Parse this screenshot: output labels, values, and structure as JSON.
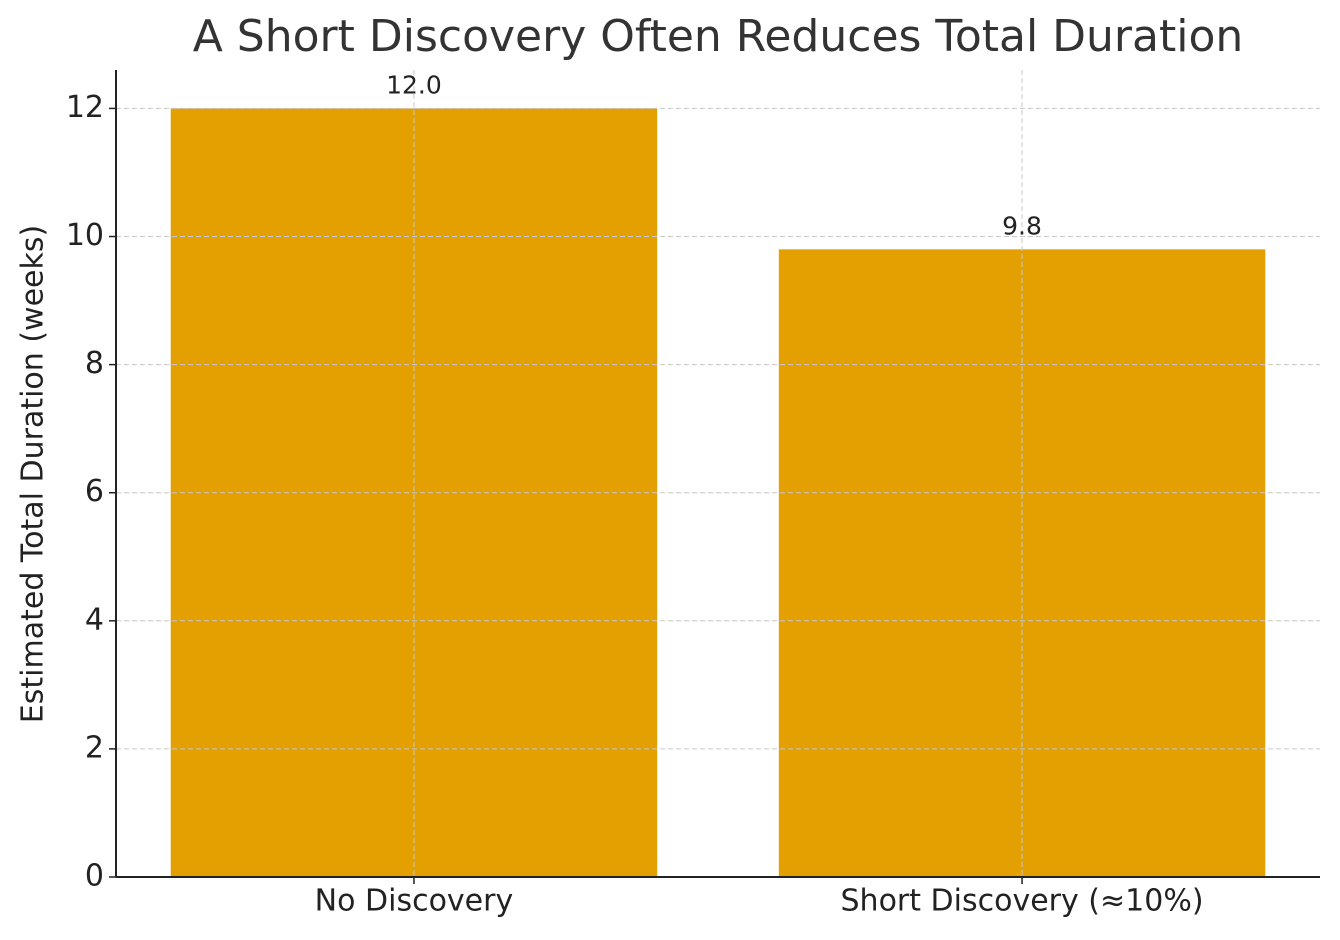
{
  "chart_data": {
    "type": "bar",
    "title": "A Short Discovery Often Reduces Total Duration",
    "y_label": "Estimated Total Duration (weeks)",
    "categories": [
      "No Discovery",
      "Short Discovery (≈10%)"
    ],
    "values": [
      12,
      9.8
    ],
    "value_labels": [
      "12.0",
      "9.8"
    ],
    "color": "#e49f00",
    "ylim": [
      0,
      12.6
    ],
    "yticks": [
      0,
      2,
      4,
      6,
      8,
      10,
      12
    ],
    "grid": true
  }
}
